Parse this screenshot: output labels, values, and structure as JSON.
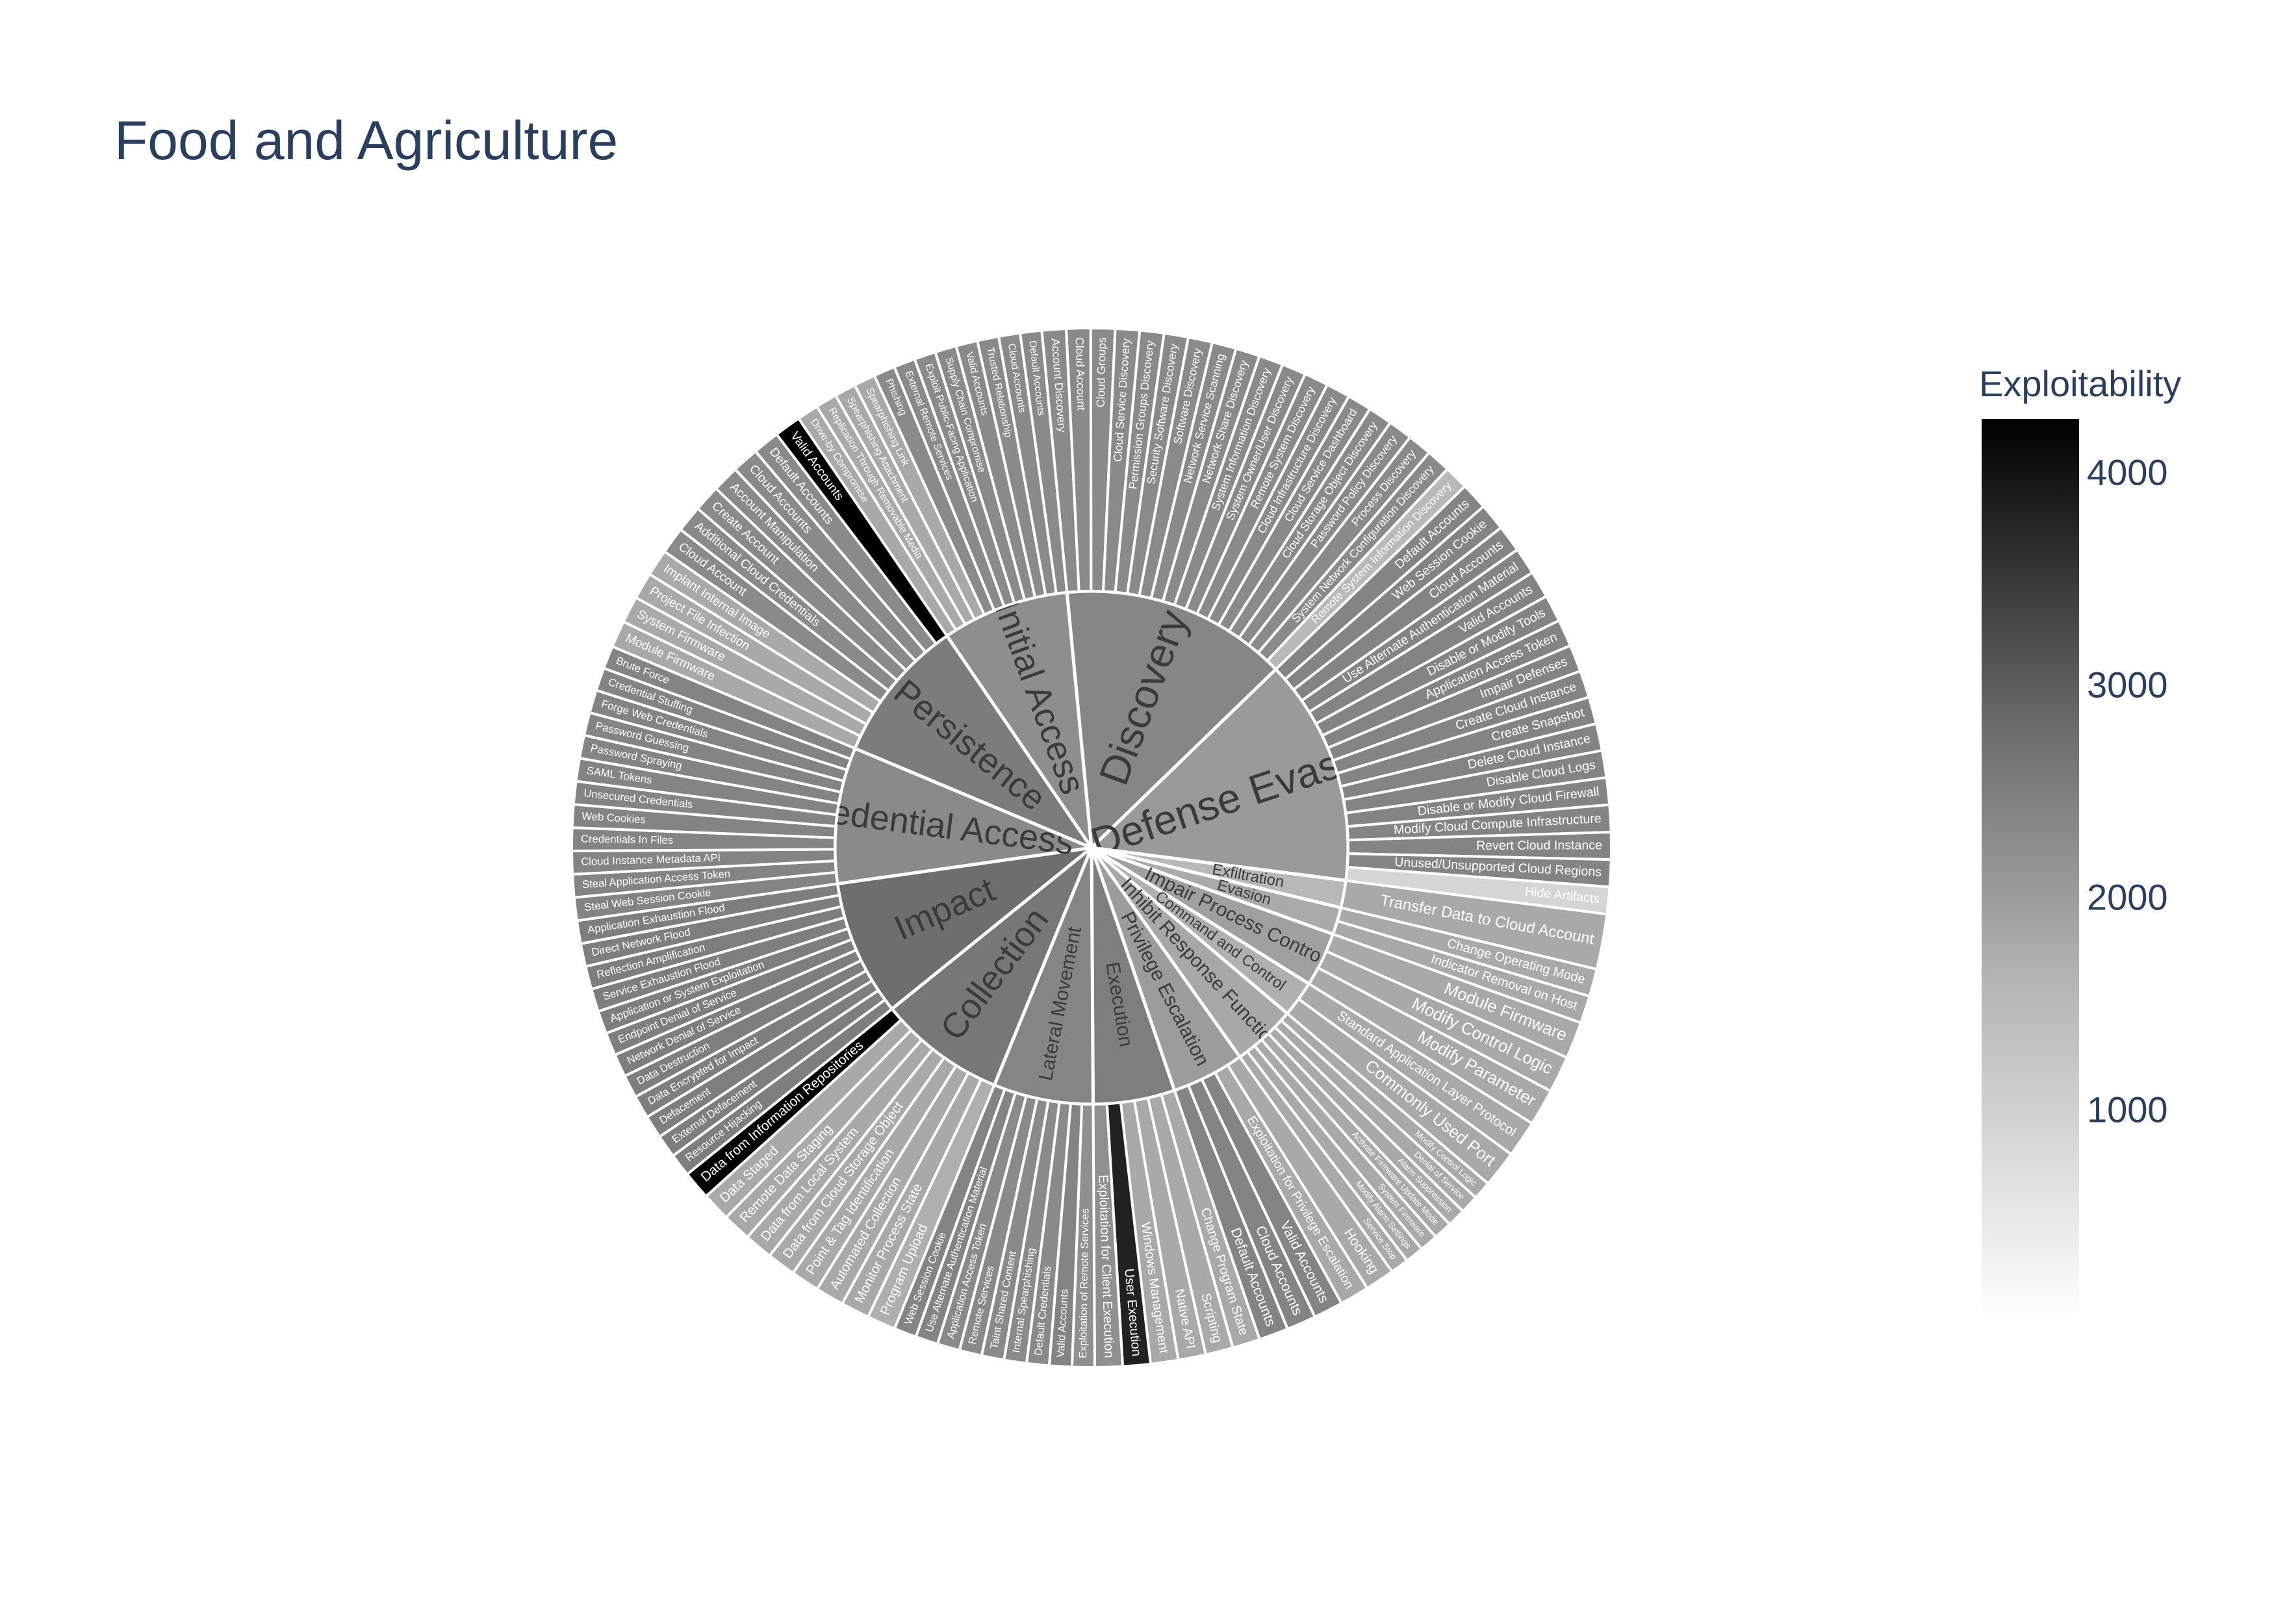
{
  "chart_data": {
    "type": "sunburst",
    "title": "Food and Agriculture",
    "colorbar": {
      "title": "Exploitability",
      "ticks": [
        1000,
        2000,
        3000,
        4000
      ],
      "range": [
        0,
        4250
      ]
    },
    "tactics": [
      {
        "name": "Discovery",
        "value": 25,
        "color": "#868686",
        "children": [
          {
            "name": "Account Discovery",
            "value": 2300
          },
          {
            "name": "Cloud Account",
            "value": 2300
          },
          {
            "name": "Cloud Groups",
            "value": 2300
          },
          {
            "name": "Cloud Service Discovery",
            "value": 2300
          },
          {
            "name": "Permission Groups Discovery",
            "value": 2300
          },
          {
            "name": "Security Software Discovery",
            "value": 2300
          },
          {
            "name": "Software Discovery",
            "value": 2300
          },
          {
            "name": "Network Service Scanning",
            "value": 2300
          },
          {
            "name": "Network Share Discovery",
            "value": 2300
          },
          {
            "name": "System Information Discovery",
            "value": 2300
          },
          {
            "name": "System Owner/User Discovery",
            "value": 2300
          },
          {
            "name": "Remote System Discovery",
            "value": 2300
          },
          {
            "name": "Cloud Infrastructure Discovery",
            "value": 2300
          },
          {
            "name": "Cloud Service Dashboard",
            "value": 2300
          },
          {
            "name": "Cloud Storage Object Discovery",
            "value": 2300
          },
          {
            "name": "Password Policy Discovery",
            "value": 2300
          },
          {
            "name": "Process Discovery",
            "value": 2300
          },
          {
            "name": "System Network Configuration Discovery",
            "value": 2300
          },
          {
            "name": "Remote System Information Discovery",
            "value": 1500
          }
        ]
      },
      {
        "name": "Defense Evasion",
        "value": 25,
        "color": "#9a9a9a",
        "children": [
          {
            "name": "Default Accounts",
            "value": 2400
          },
          {
            "name": "Web Session Cookie",
            "value": 2400
          },
          {
            "name": "Cloud Accounts",
            "value": 2400
          },
          {
            "name": "Use Alternate Authentication Material",
            "value": 2400
          },
          {
            "name": "Valid Accounts",
            "value": 2400
          },
          {
            "name": "Disable or Modify Tools",
            "value": 2400
          },
          {
            "name": "Application Access Token",
            "value": 2400
          },
          {
            "name": "Impair Defenses",
            "value": 2400
          },
          {
            "name": "Create Cloud Instance",
            "value": 2400
          },
          {
            "name": "Create Snapshot",
            "value": 2400
          },
          {
            "name": "Delete Cloud Instance",
            "value": 2400
          },
          {
            "name": "Disable Cloud Logs",
            "value": 2400
          },
          {
            "name": "Disable or Modify Cloud Firewall",
            "value": 2400
          },
          {
            "name": "Modify Cloud Compute Infrastructure",
            "value": 2400
          },
          {
            "name": "Revert Cloud Instance",
            "value": 2400
          },
          {
            "name": "Unused/Unsupported Cloud Regions",
            "value": 2400
          },
          {
            "name": "Hide Artifacts",
            "value": 900
          }
        ]
      },
      {
        "name": "Exfiltration",
        "value": 3,
        "color": "#b8b8b8",
        "children": [
          {
            "name": "Transfer Data to Cloud Account",
            "value": 1800
          }
        ]
      },
      {
        "name": "Evasion",
        "value": 3,
        "color": "#aaaaaa",
        "children": [
          {
            "name": "Change Operating Mode",
            "value": 1800
          },
          {
            "name": "Indicator Removal on Host",
            "value": 1800
          }
        ]
      },
      {
        "name": "Impair Process Control",
        "value": 6,
        "color": "#a0a0a0",
        "children": [
          {
            "name": "Module Firmware",
            "value": 1800
          },
          {
            "name": "Modify Control Logic",
            "value": 1800
          },
          {
            "name": "Modify Parameter",
            "value": 1800
          }
        ]
      },
      {
        "name": "Command and Control",
        "value": 4,
        "color": "#b0b0b0",
        "children": [
          {
            "name": "Standard Application Layer Protocol",
            "value": 1800
          },
          {
            "name": "Commonly Used Port",
            "value": 1800
          }
        ]
      },
      {
        "name": "Inhibit Response Function",
        "value": 7,
        "color": "#a8a8a8",
        "children": [
          {
            "name": "Modify Control Logic",
            "value": 1800
          },
          {
            "name": "Denial of Service",
            "value": 1800
          },
          {
            "name": "Alarm Suppression",
            "value": 1800
          },
          {
            "name": "Activate Firmware Update Mode",
            "value": 1800
          },
          {
            "name": "System Firmware",
            "value": 1800
          },
          {
            "name": "Modify Alarm Settings",
            "value": 1800
          },
          {
            "name": "Service Stop",
            "value": 1800
          }
        ]
      },
      {
        "name": "Privilege Escalation",
        "value": 8,
        "color": "#9c9c9c",
        "children": [
          {
            "name": "Hooking",
            "value": 1800
          },
          {
            "name": "Exploitation for Privilege Escalation",
            "value": 1800
          },
          {
            "name": "Valid Accounts",
            "value": 2400
          },
          {
            "name": "Cloud Accounts",
            "value": 2400
          },
          {
            "name": "Default Accounts",
            "value": 2400
          }
        ]
      },
      {
        "name": "Execution",
        "value": 9,
        "color": "#7e7e7e",
        "children": [
          {
            "name": "Change Program State",
            "value": 1800
          },
          {
            "name": "Scripting",
            "value": 1800
          },
          {
            "name": "Native API",
            "value": 1800
          },
          {
            "name": "Windows Management",
            "value": 1800
          },
          {
            "name": "User Execution",
            "value": 3800
          },
          {
            "name": "Exploitation for Client Execution",
            "value": 2200
          }
        ]
      },
      {
        "name": "Lateral Movement",
        "value": 11,
        "color": "#858585",
        "children": [
          {
            "name": "Exploitation of Remote Services",
            "value": 2200
          },
          {
            "name": "Valid Accounts",
            "value": 2400
          },
          {
            "name": "Default Credentials",
            "value": 2300
          },
          {
            "name": "Internal Spearphishing",
            "value": 2300
          },
          {
            "name": "Taint Shared Content",
            "value": 2300
          },
          {
            "name": "Remote Services",
            "value": 2300
          },
          {
            "name": "Application Access Token",
            "value": 2300
          },
          {
            "name": "Use Alternate Authentication Material",
            "value": 2400
          },
          {
            "name": "Web Session Cookie",
            "value": 2400
          }
        ]
      },
      {
        "name": "Collection",
        "value": 14,
        "color": "#777777",
        "children": [
          {
            "name": "Program Upload",
            "value": 1700
          },
          {
            "name": "Monitor Process State",
            "value": 1800
          },
          {
            "name": "Automated Collection",
            "value": 1800
          },
          {
            "name": "Point & Tag Identification",
            "value": 1800
          },
          {
            "name": "Data from Cloud Storage Object",
            "value": 1800
          },
          {
            "name": "Data from Local System",
            "value": 1800
          },
          {
            "name": "Remote Data Staging",
            "value": 1800
          },
          {
            "name": "Data Staged",
            "value": 1800
          },
          {
            "name": "Data from Information Repositories",
            "value": 4250
          }
        ]
      },
      {
        "name": "Impact",
        "value": 15,
        "color": "#6e6e6e",
        "children": [
          {
            "name": "Resource Hijacking",
            "value": 2500
          },
          {
            "name": "External Defacement",
            "value": 2500
          },
          {
            "name": "Defacement",
            "value": 2500
          },
          {
            "name": "Data Encrypted for Impact",
            "value": 2500
          },
          {
            "name": "Data Destruction",
            "value": 2500
          },
          {
            "name": "Network Denial of Service",
            "value": 2500
          },
          {
            "name": "Endpoint Denial of Service",
            "value": 2500
          },
          {
            "name": "Application or System Exploitation",
            "value": 2500
          },
          {
            "name": "Service Exhaustion Flood",
            "value": 2500
          },
          {
            "name": "Reflection Amplification",
            "value": 2500
          },
          {
            "name": "Direct Network Flood",
            "value": 2500
          },
          {
            "name": "Application Exhaustion Flood",
            "value": 2500
          }
        ]
      },
      {
        "name": "Credential Access",
        "value": 15,
        "color": "#8a8a8a",
        "children": [
          {
            "name": "Steal Web Session Cookie",
            "value": 2400
          },
          {
            "name": "Steal Application Access Token",
            "value": 2400
          },
          {
            "name": "Cloud Instance Metadata API",
            "value": 2400
          },
          {
            "name": "Credentials In Files",
            "value": 2400
          },
          {
            "name": "Web Cookies",
            "value": 2400
          },
          {
            "name": "Unsecured Credentials",
            "value": 2400
          },
          {
            "name": "SAML Tokens",
            "value": 2400
          },
          {
            "name": "Password Spraying",
            "value": 2400
          },
          {
            "name": "Password Guessing",
            "value": 2400
          },
          {
            "name": "Forge Web Credentials",
            "value": 2400
          },
          {
            "name": "Credential Stuffing",
            "value": 2400
          },
          {
            "name": "Brute Force",
            "value": 2400
          }
        ]
      },
      {
        "name": "Persistence",
        "value": 16,
        "color": "#7c7c7c",
        "children": [
          {
            "name": "Module Firmware",
            "value": 1800
          },
          {
            "name": "System Firmware",
            "value": 1800
          },
          {
            "name": "Project File Infection",
            "value": 1800
          },
          {
            "name": "Implant Internal Image",
            "value": 1800
          },
          {
            "name": "Cloud Account",
            "value": 2300
          },
          {
            "name": "Additional Cloud Credentials",
            "value": 2300
          },
          {
            "name": "Create Account",
            "value": 2300
          },
          {
            "name": "Account Manipulation",
            "value": 2300
          },
          {
            "name": "Cloud Accounts",
            "value": 2300
          },
          {
            "name": "Default Accounts",
            "value": 2300
          },
          {
            "name": "Valid Accounts",
            "value": 4250
          }
        ]
      },
      {
        "name": "Initial Access",
        "value": 14,
        "color": "#8e8e8e",
        "children": [
          {
            "name": "Drive-by Compromise",
            "value": 1800
          },
          {
            "name": "Replication Through Removable Media",
            "value": 1800
          },
          {
            "name": "Spearphishing Attachment",
            "value": 1800
          },
          {
            "name": "Spearphishing Link",
            "value": 1800
          },
          {
            "name": "Phishing",
            "value": 2300
          },
          {
            "name": "External Remote Services",
            "value": 2300
          },
          {
            "name": "Exploit Public-Facing Application",
            "value": 2300
          },
          {
            "name": "Supply Chain Compromise",
            "value": 2300
          },
          {
            "name": "Valid Accounts",
            "value": 2300
          },
          {
            "name": "Trusted Relationship",
            "value": 2300
          },
          {
            "name": "Cloud Accounts",
            "value": 2300
          },
          {
            "name": "Default Accounts",
            "value": 2300
          }
        ]
      }
    ]
  }
}
